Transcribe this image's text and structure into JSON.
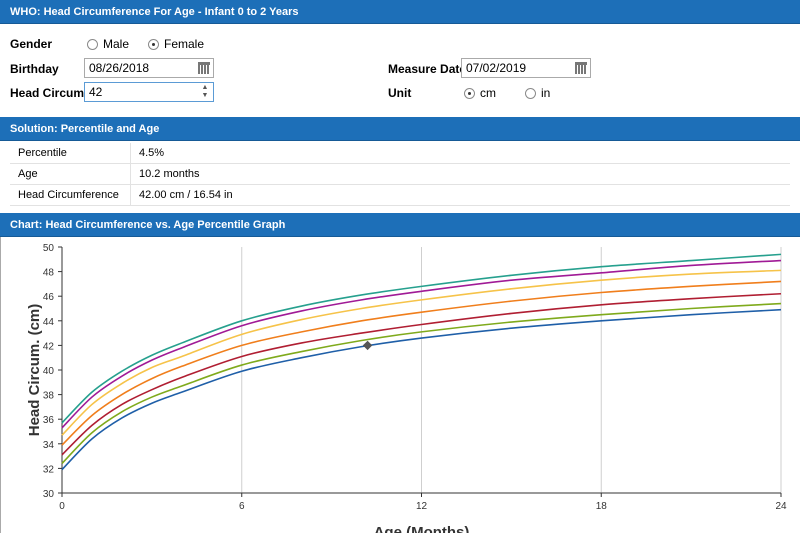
{
  "form": {
    "title": "WHO: Head Circumference For Age - Infant 0 to 2 Years",
    "gender_label": "Gender",
    "gender_options": [
      "Male",
      "Female"
    ],
    "gender_selected": "Female",
    "birthday_label": "Birthday",
    "birthday_value": "08/26/2018",
    "measure_date_label": "Measure Date",
    "measure_date_value": "07/02/2019",
    "head_circum_label": "Head Circum",
    "head_circum_value": "42",
    "unit_label": "Unit",
    "unit_options": [
      "cm",
      "in"
    ],
    "unit_selected": "cm"
  },
  "solution": {
    "title": "Solution: Percentile and Age",
    "rows": [
      {
        "label": "Percentile",
        "value": "4.5%"
      },
      {
        "label": "Age",
        "value": "10.2 months"
      },
      {
        "label": "Head Circumference",
        "value": "42.00 cm / 16.54 in"
      }
    ]
  },
  "chart_section": {
    "title": "Chart: Head Circumference vs. Age Percentile Graph"
  },
  "chart_data": {
    "type": "line",
    "xlabel": "Age (Months)",
    "ylabel": "Head Circum. (cm)",
    "xlim": [
      0,
      24
    ],
    "ylim": [
      30,
      50
    ],
    "x_ticks": [
      0,
      6,
      12,
      18,
      24
    ],
    "y_ticks": [
      30,
      32,
      34,
      36,
      38,
      40,
      42,
      44,
      46,
      48,
      50
    ],
    "grid": "vertical",
    "x": [
      0,
      1,
      2,
      3,
      4,
      6,
      8,
      10,
      12,
      15,
      18,
      21,
      24
    ],
    "series": [
      {
        "color": "#1f5fa8",
        "values": [
          31.9,
          34.4,
          36.1,
          37.3,
          38.2,
          39.9,
          41.0,
          41.9,
          42.6,
          43.4,
          44.0,
          44.5,
          44.9
        ]
      },
      {
        "color": "#7faa1c",
        "values": [
          32.4,
          34.9,
          36.6,
          37.8,
          38.7,
          40.4,
          41.5,
          42.4,
          43.1,
          43.9,
          44.5,
          45.0,
          45.4
        ]
      },
      {
        "color": "#b01e32",
        "values": [
          33.1,
          35.5,
          37.2,
          38.4,
          39.4,
          41.1,
          42.2,
          43.0,
          43.7,
          44.6,
          45.3,
          45.8,
          46.2
        ]
      },
      {
        "color": "#f07e1c",
        "values": [
          33.9,
          36.3,
          38.0,
          39.3,
          40.3,
          42.0,
          43.1,
          44.0,
          44.7,
          45.6,
          46.3,
          46.8,
          47.2
        ]
      },
      {
        "color": "#f6c349",
        "values": [
          34.7,
          37.2,
          38.9,
          40.2,
          41.1,
          42.9,
          44.1,
          45.0,
          45.7,
          46.6,
          47.3,
          47.8,
          48.1
        ]
      },
      {
        "color": "#a01a96",
        "values": [
          35.3,
          37.8,
          39.5,
          40.8,
          41.8,
          43.6,
          44.8,
          45.7,
          46.4,
          47.3,
          47.9,
          48.5,
          48.9
        ]
      },
      {
        "color": "#26a08e",
        "values": [
          35.7,
          38.2,
          39.9,
          41.2,
          42.2,
          44.0,
          45.2,
          46.1,
          46.8,
          47.7,
          48.4,
          48.9,
          49.4
        ]
      }
    ],
    "marker": {
      "x": 10.2,
      "y": 42.0
    }
  }
}
